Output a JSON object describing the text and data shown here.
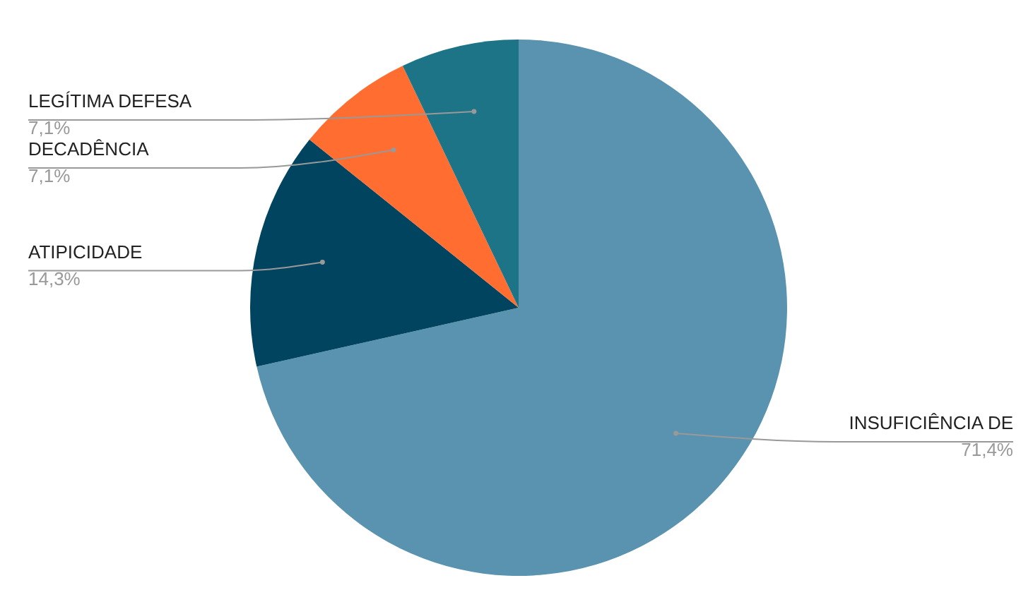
{
  "chart_data": {
    "type": "pie",
    "categories": [
      "INSUFICIÊNCIA DE",
      "ATIPICIDADE",
      "DECADÊNCIA",
      "LEGÍTIMA DEFESA"
    ],
    "values": [
      71.4,
      14.3,
      7.1,
      7.1
    ],
    "colors": [
      "#5a93b0",
      "#00445f",
      "#ff6d31",
      "#1c7486"
    ],
    "value_labels": [
      "71,4%",
      "14,3%",
      "7,1%",
      "7,1%"
    ]
  }
}
